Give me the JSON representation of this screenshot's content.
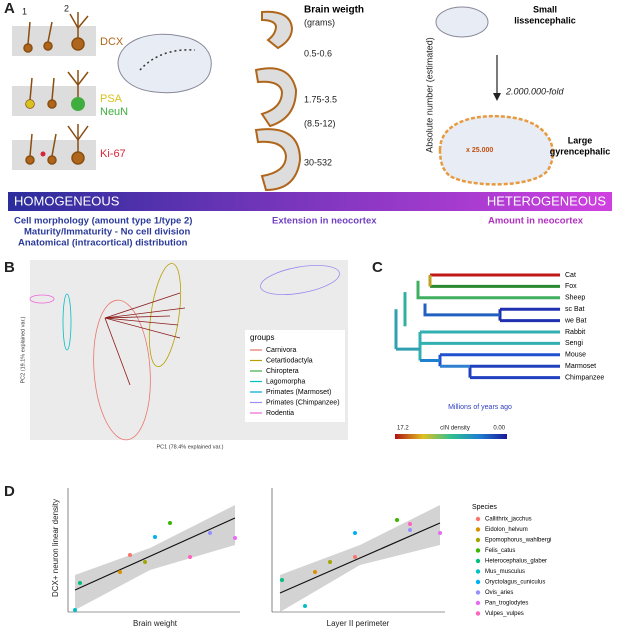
{
  "panel_a": {
    "label": "A",
    "cell_types": [
      "1",
      "2"
    ],
    "markers": [
      {
        "text": "DCX",
        "color": "#b0661a"
      },
      {
        "text": "PSA",
        "color": "#d8c21e"
      },
      {
        "text": "NeuN",
        "color": "#3fae3f"
      },
      {
        "text": "Ki-67",
        "color": "#d8243a"
      }
    ],
    "brain_weight": {
      "title": "Brain weigth",
      "unit": "(grams)",
      "values": [
        "0.5-0.6",
        "1.75-3.5",
        "(8.5-12)",
        "30-532"
      ]
    },
    "y_label": "Absolute number (estimated)",
    "small": [
      "Small",
      "lissencephalic"
    ],
    "fold": "2.000.000-fold",
    "multiplier": "x 25.000",
    "large": [
      "Large",
      "gyrencephalic"
    ]
  },
  "gradient": {
    "left": "HOMOGENEOUS",
    "right": "HETEROGENEOUS"
  },
  "features": {
    "homogeneous": [
      "Cell morphology (amount type 1/type 2)",
      "Maturity/Immaturity - No cell division",
      "Anatomical (intracortical) distribution"
    ],
    "middle": "Extension in neocortex",
    "heterogeneous": "Amount in neocortex"
  },
  "panel_b": {
    "label": "B",
    "x_label": "PC1 (78.4% explained var.)",
    "y_label": "PC2 (19.1% explained var.)",
    "legend_title": "groups",
    "groups": [
      {
        "name": "Carnivora",
        "color": "#e8766d"
      },
      {
        "name": "Cetartiodactyla",
        "color": "#b79f00"
      },
      {
        "name": "Chiroptera",
        "color": "#3fae3f"
      },
      {
        "name": "Lagomorpha",
        "color": "#00bfc4"
      },
      {
        "name": "Primates (Marmoset)",
        "color": "#00a5e0"
      },
      {
        "name": "Primates (Chimpanzee)",
        "color": "#9c8df0"
      },
      {
        "name": "Rodentia",
        "color": "#f064d8"
      }
    ]
  },
  "panel_c": {
    "label": "C",
    "leaves": [
      "Cat",
      "Fox",
      "Sheep",
      "sc Bat",
      "we Bat",
      "Rabbit",
      "Sengi",
      "Mouse",
      "Marmoset",
      "Chimpanzee"
    ],
    "x_label": "Millions of years ago",
    "scale_max": "17.2",
    "scale_title": "cIN density",
    "scale_min": "0.00"
  },
  "panel_d": {
    "label": "D",
    "y_label": "DCX+ neuron linear density",
    "x_labels": [
      "Brain weight",
      "Layer II perimeter"
    ],
    "legend_title": "Species",
    "species": [
      {
        "name": "Callithrix_jacchus",
        "color": "#f8766d"
      },
      {
        "name": "Eidolon_helvum",
        "color": "#d89000"
      },
      {
        "name": "Epomophorus_wahlbergi",
        "color": "#a3a500"
      },
      {
        "name": "Felis_catus",
        "color": "#39b600"
      },
      {
        "name": "Heterocephalus_glaber",
        "color": "#00bf7d"
      },
      {
        "name": "Mus_musculus",
        "color": "#00bfc4"
      },
      {
        "name": "Oryctolagus_cuniculus",
        "color": "#00b0f6"
      },
      {
        "name": "Ovis_aries",
        "color": "#9590ff"
      },
      {
        "name": "Pan_troglodytes",
        "color": "#e76bf3"
      },
      {
        "name": "Vulpes_vulpes",
        "color": "#ff62bc"
      }
    ]
  }
}
